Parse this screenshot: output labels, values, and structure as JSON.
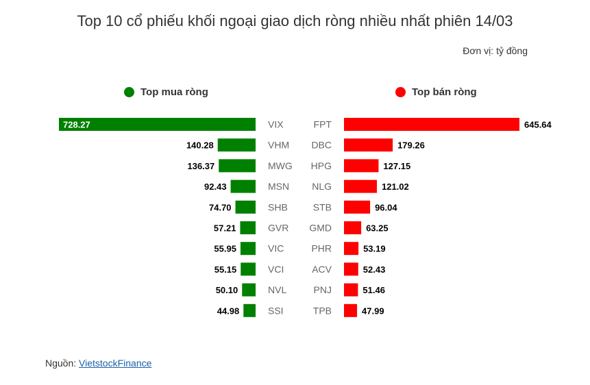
{
  "header": {
    "title": "Top 10 cổ phiếu khối ngoại giao dịch ròng nhiều nhất phiên 14/03",
    "unit": "Đơn vị: tỷ đồng"
  },
  "legend": {
    "buy_label": "Top mua ròng",
    "sell_label": "Top bán ròng"
  },
  "colors": {
    "buy": "#008000",
    "sell": "#ff0000"
  },
  "source": {
    "prefix": "Nguồn: ",
    "link_text": "VietstockFinance"
  },
  "chart_data": {
    "type": "bar",
    "orientation": "horizontal-diverging",
    "series": [
      {
        "name": "Top mua ròng",
        "categories": [
          "VIX",
          "VHM",
          "MWG",
          "MSN",
          "SHB",
          "GVR",
          "VIC",
          "VCI",
          "NVL",
          "SSI"
        ],
        "values": [
          728.27,
          140.28,
          136.37,
          92.43,
          74.7,
          57.21,
          55.95,
          55.15,
          50.1,
          44.98
        ],
        "labels": [
          "728.27",
          "140.28",
          "136.37",
          "92.43",
          "74.70",
          "57.21",
          "55.95",
          "55.15",
          "50.10",
          "44.98"
        ]
      },
      {
        "name": "Top bán ròng",
        "categories": [
          "FPT",
          "DBC",
          "HPG",
          "NLG",
          "STB",
          "GMD",
          "PHR",
          "ACV",
          "PNJ",
          "TPB"
        ],
        "values": [
          645.64,
          179.26,
          127.15,
          121.02,
          96.04,
          63.25,
          53.19,
          52.43,
          51.46,
          47.99
        ],
        "labels": [
          "645.64",
          "179.26",
          "127.15",
          "121.02",
          "96.04",
          "63.25",
          "53.19",
          "52.43",
          "51.46",
          "47.99"
        ]
      }
    ]
  }
}
